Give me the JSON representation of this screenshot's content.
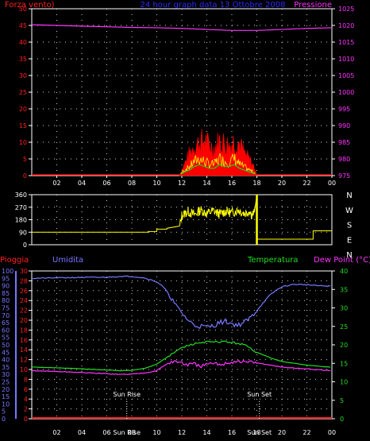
{
  "colors": {
    "background": "#000000",
    "frame": "#ffffff",
    "grid": "#cfcfcf",
    "wind_label": "#ff2020",
    "pressure": "#ff33ff",
    "title": "#2a2aff",
    "rain": "#ff2020",
    "humidity": "#7777ff",
    "temperature": "#22dd22",
    "dew_point": "#ff33ff",
    "wind_speed_fill": "#ff0000",
    "wind_gust_line": "#ffff00",
    "wind_avg_line": "#22cc22",
    "wind_dir_line": "#ffff00",
    "sun_markers": "#ffffff"
  },
  "header": {
    "wind_label": "Forza vento)",
    "title": "24 hour graph data 13 Ottobre 2008",
    "pressure_label": "Pressione"
  },
  "panel2_labels": {
    "rain": "Pioggia",
    "humidity": "Umidita",
    "temperature": "Temperatura",
    "dew_point": "Dew Point (°C)",
    "sun_rise": "Sun Rise",
    "sun_set": "Sun Set"
  },
  "chart_data": [
    {
      "type": "area",
      "title": "24 hour graph data 13 Ottobre 2008",
      "x_ticks": [
        "02",
        "04",
        "06",
        "08",
        "10",
        "12",
        "14",
        "16",
        "18",
        "20",
        "22",
        "00"
      ],
      "xlim": [
        0,
        24
      ],
      "y_left": {
        "label": "Forza vento)",
        "lim": [
          0,
          50
        ],
        "ticks": [
          0,
          5,
          10,
          15,
          20,
          25,
          30,
          35,
          40,
          45,
          50
        ]
      },
      "y_right": {
        "label": "Pressione",
        "lim": [
          975,
          1025
        ],
        "ticks": [
          975,
          980,
          985,
          990,
          995,
          1000,
          1005,
          1010,
          1015,
          1020,
          1025
        ]
      },
      "grid": true,
      "series": [
        {
          "name": "Pressione",
          "axis": "right",
          "x": [
            0,
            2,
            4,
            6,
            8,
            10,
            12,
            14,
            16,
            18,
            20,
            22,
            24
          ],
          "values": [
            1020.2,
            1020.0,
            1019.8,
            1019.6,
            1019.4,
            1019.3,
            1019.1,
            1018.8,
            1018.5,
            1018.5,
            1018.8,
            1019.1,
            1019.3
          ]
        },
        {
          "name": "gust",
          "x": [
            11.8,
            12.2,
            12.6,
            13.0,
            13.4,
            13.8,
            14.2,
            14.6,
            15.0,
            15.4,
            15.8,
            16.2,
            16.6,
            17.0,
            17.4,
            17.8,
            18.0
          ],
          "values": [
            0,
            4,
            8,
            11,
            12,
            13,
            11,
            10,
            13,
            12,
            11,
            13,
            12,
            8,
            6,
            3,
            0
          ]
        },
        {
          "name": "wind",
          "x": [
            11.8,
            12.2,
            12.6,
            13.0,
            13.4,
            13.8,
            14.2,
            14.6,
            15.0,
            15.4,
            15.8,
            16.2,
            16.6,
            17.0,
            17.4,
            17.8,
            18.0
          ],
          "values": [
            0,
            2,
            3,
            5,
            6,
            5,
            4,
            4,
            6,
            5,
            5,
            6,
            4,
            3,
            2,
            1,
            0
          ]
        }
      ]
    },
    {
      "type": "line",
      "xlim": [
        0,
        24
      ],
      "y_left": {
        "lim": [
          0,
          360
        ],
        "ticks": [
          0,
          90,
          180,
          270,
          360
        ]
      },
      "y_right": {
        "labels": [
          "N",
          "W",
          "S",
          "E",
          "N"
        ]
      },
      "grid": true,
      "series": [
        {
          "name": "direction",
          "x": [
            0,
            9.3,
            9.3,
            10.0,
            10.0,
            10.8,
            10.8,
            11.8,
            12.0,
            12.5,
            13.0,
            13.5,
            14.0,
            14.5,
            15.0,
            15.5,
            16.0,
            16.5,
            17.0,
            17.4,
            17.6,
            17.8,
            18.0,
            18.0,
            22.5,
            22.5,
            23.3,
            23.3,
            24
          ],
          "values": [
            90,
            90,
            95,
            95,
            112,
            112,
            118,
            118,
            210,
            240,
            215,
            250,
            225,
            245,
            220,
            240,
            230,
            250,
            225,
            240,
            215,
            232,
            355,
            40,
            40,
            100,
            100,
            100,
            100
          ]
        }
      ]
    },
    {
      "type": "line",
      "x_ticks": [
        "02",
        "04",
        "06",
        "08",
        "10",
        "12",
        "14",
        "16",
        "18",
        "20",
        "22",
        "00"
      ],
      "xlim": [
        0,
        24
      ],
      "axes": {
        "rain": {
          "label": "Pioggia",
          "lim": [
            0,
            100
          ],
          "ticks": [
            0,
            5,
            10,
            15,
            20,
            25,
            30,
            35,
            40,
            45,
            50,
            55,
            60,
            65,
            70,
            75,
            80,
            85,
            90,
            95,
            100
          ]
        },
        "humidity": {
          "label": "Umidita",
          "lim": [
            0,
            30
          ],
          "ticks": [
            0,
            2,
            4,
            6,
            8,
            10,
            12,
            14,
            16,
            18,
            20,
            22,
            24,
            26,
            28,
            30
          ]
        },
        "temperature": {
          "label": "Temperatura",
          "lim": [
            0,
            40
          ],
          "ticks": [
            0,
            5,
            10,
            15,
            20,
            25,
            30,
            35,
            40
          ]
        }
      },
      "annotations": [
        {
          "text": "Sun Rise",
          "x": 7.6
        },
        {
          "text": "Sun Set",
          "x": 18.2
        }
      ],
      "grid": true,
      "series": [
        {
          "name": "Umidita",
          "axis": "humidity",
          "x": [
            0,
            2,
            4,
            6,
            7,
            8,
            9,
            10,
            10.5,
            11,
            11.5,
            12,
            12.5,
            13,
            13.5,
            14,
            14.5,
            15,
            15.5,
            16,
            16.5,
            17,
            17.5,
            18,
            18.5,
            19,
            19.5,
            20,
            21,
            22,
            23,
            24
          ],
          "values": [
            28.5,
            28.6,
            28.7,
            28.7,
            28.9,
            28.9,
            28.6,
            27.8,
            26.8,
            25.2,
            23.0,
            21.5,
            20.0,
            19.0,
            18.8,
            18.6,
            18.9,
            19.5,
            19.8,
            19.3,
            19.0,
            19.6,
            20.5,
            22.0,
            23.5,
            25.0,
            26.0,
            26.8,
            27.3,
            27.2,
            27.0,
            26.9
          ]
        },
        {
          "name": "Temperatura",
          "axis": "temperature",
          "x": [
            0,
            2,
            4,
            6,
            7,
            8,
            9,
            10,
            10.5,
            11,
            11.5,
            12,
            12.5,
            13,
            13.5,
            14,
            14.5,
            15,
            15.5,
            16,
            16.5,
            17,
            17.5,
            18,
            18.5,
            19,
            19.5,
            20,
            21,
            22,
            23,
            24
          ],
          "values": [
            14.0,
            13.8,
            13.5,
            13.2,
            13.0,
            13.1,
            13.6,
            14.8,
            16.0,
            17.0,
            18.2,
            19.2,
            19.8,
            20.3,
            20.6,
            20.8,
            20.7,
            20.8,
            20.9,
            20.6,
            20.4,
            20.0,
            19.0,
            18.0,
            17.3,
            16.6,
            16.0,
            15.5,
            15.0,
            14.5,
            14.2,
            13.9
          ]
        },
        {
          "name": "Dew Point (°C)",
          "axis": "temperature",
          "x": [
            0,
            2,
            4,
            6,
            7,
            8,
            9,
            10,
            10.5,
            11,
            11.5,
            12,
            12.5,
            13,
            13.5,
            14,
            14.5,
            15,
            15.5,
            16,
            16.5,
            17,
            17.5,
            18,
            18.5,
            19,
            19.5,
            20,
            21,
            22,
            23,
            24
          ],
          "values": [
            13.0,
            12.8,
            12.5,
            12.2,
            12.0,
            12.1,
            12.4,
            13.0,
            14.2,
            15.2,
            15.6,
            15.0,
            14.6,
            14.8,
            14.2,
            14.6,
            14.9,
            14.7,
            15.0,
            15.3,
            15.5,
            15.4,
            15.3,
            15.2,
            14.8,
            14.5,
            14.3,
            14.0,
            13.7,
            13.5,
            13.2,
            13.0
          ]
        },
        {
          "name": "Pioggia",
          "axis": "rain",
          "x": [
            0,
            24
          ],
          "values": [
            0,
            0
          ]
        }
      ]
    }
  ]
}
